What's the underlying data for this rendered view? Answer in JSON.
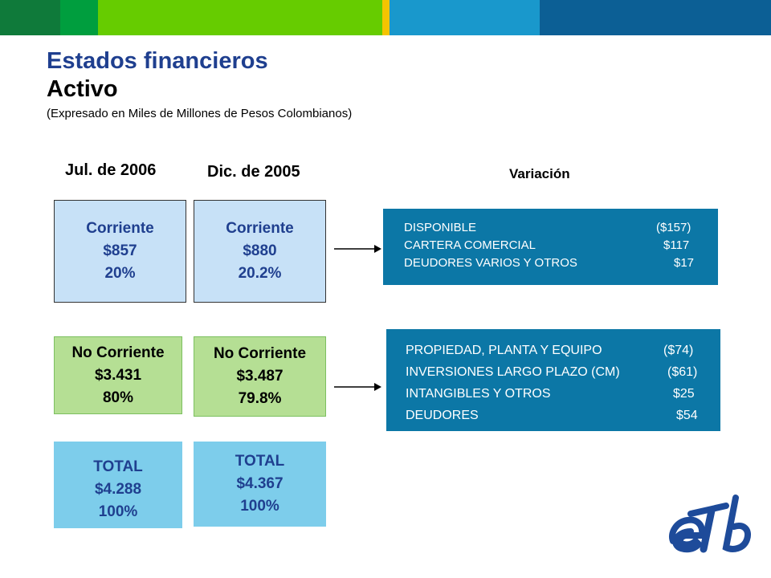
{
  "colors": {
    "band": [
      "#0f7a3a",
      "#009e3e",
      "#66cc00",
      "#f5c400",
      "#1998cc",
      "#0c5f95",
      "#0a4c82"
    ],
    "title": "#1f3f8f",
    "panel": "#0c77a6",
    "corriente_box": "#c7e1f7",
    "no_corriente_box": "#b5df94",
    "total_box": "#7dcdeb"
  },
  "header": {
    "title": "Estados financieros",
    "subtitle": "Activo",
    "note": "(Expresado en Miles de Millones de Pesos Colombianos)"
  },
  "columns": {
    "jul2006": "Jul. de 2006",
    "dic2005": "Dic. de 2005",
    "variacion": "Variación"
  },
  "jul2006": {
    "corriente": {
      "label": "Corriente",
      "value": "$857",
      "pct": "20%"
    },
    "no_corriente": {
      "label": "No Corriente",
      "value": "$3.431",
      "pct": "80%"
    },
    "total": {
      "label": "TOTAL",
      "value": "$4.288",
      "pct": "100%"
    }
  },
  "dic2005": {
    "corriente": {
      "label": "Corriente",
      "value": "$880",
      "pct": "20.2%"
    },
    "no_corriente": {
      "label": "No Corriente",
      "value": "$3.487",
      "pct": "79.8%"
    },
    "total": {
      "label": "TOTAL",
      "value": "$4.367",
      "pct": "100%"
    }
  },
  "variacion_corriente": [
    {
      "label": "DISPONIBLE",
      "amount": "($157)"
    },
    {
      "label": "CARTERA COMERCIAL",
      "amount": "$117"
    },
    {
      "label": "DEUDORES VARIOS Y OTROS",
      "amount": "$17"
    }
  ],
  "variacion_no_corriente": [
    {
      "label": "PROPIEDAD, PLANTA Y EQUIPO",
      "amount": "($74)"
    },
    {
      "label": "INVERSIONES LARGO PLAZO (CM)",
      "amount": "($61)"
    },
    {
      "label": "INTANGIBLES Y OTROS",
      "amount": "$25"
    },
    {
      "label": "DEUDORES",
      "amount": "$54"
    }
  ],
  "logo": {
    "text": "eTb",
    "icon": "etb-logo"
  }
}
